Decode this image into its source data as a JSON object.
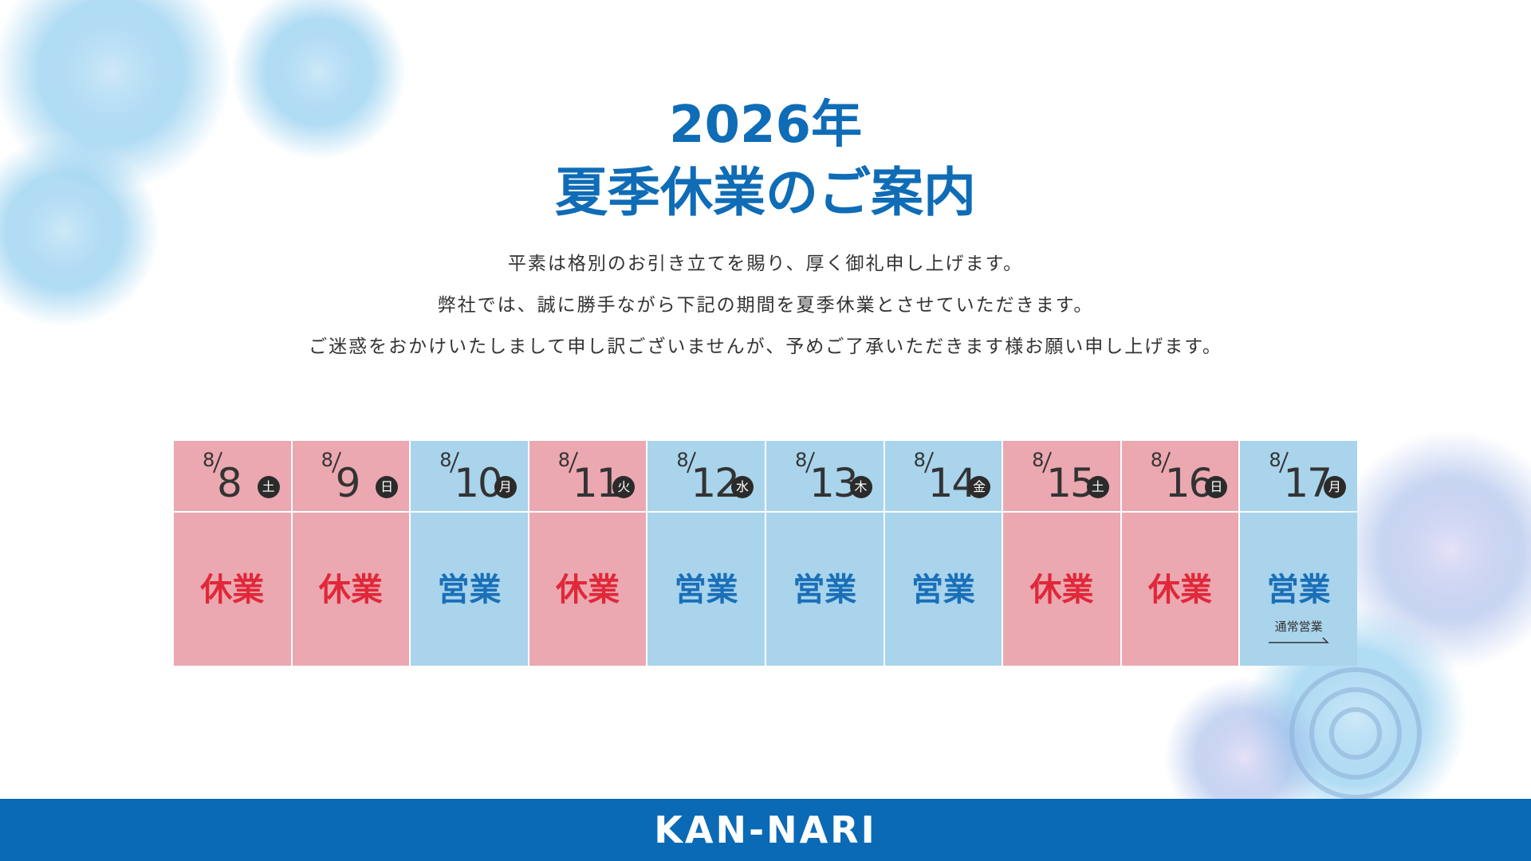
{
  "header": {
    "title_line1": "2026年",
    "title_line2": "夏季休業のご案内",
    "color": "#0f6cb6"
  },
  "message": {
    "lines": [
      "平素は格別のお引き立てを賜り、厚く御礼申し上げます。",
      "弊社では、誠に勝手ながら下記の期間を夏季休業とさせていただきます。",
      "ご迷惑をおかけいたしまして申し訳ございませんが、予めご了承いただきます様お願い申し上げます。"
    ]
  },
  "calendar": {
    "days": [
      {
        "month": "8",
        "day": "8",
        "weekday": "土",
        "status": "休業",
        "color": "#eba8b0",
        "text_color": "#e0283a"
      },
      {
        "month": "8",
        "day": "9",
        "weekday": "日",
        "status": "休業",
        "color": "#eba8b0",
        "text_color": "#e0283a"
      },
      {
        "month": "8",
        "day": "10",
        "weekday": "月",
        "status": "営業",
        "color": "#a9d4ec",
        "text_color": "#1a6fb8"
      },
      {
        "month": "8",
        "day": "11",
        "weekday": "火",
        "status": "休業",
        "color": "#eba8b0",
        "text_color": "#e0283a"
      },
      {
        "month": "8",
        "day": "12",
        "weekday": "水",
        "status": "営業",
        "color": "#a9d4ec",
        "text_color": "#1a6fb8"
      },
      {
        "month": "8",
        "day": "13",
        "weekday": "木",
        "status": "営業",
        "color": "#a9d4ec",
        "text_color": "#1a6fb8"
      },
      {
        "month": "8",
        "day": "14",
        "weekday": "金",
        "status": "営業",
        "color": "#a9d4ec",
        "text_color": "#1a6fb8"
      },
      {
        "month": "8",
        "day": "15",
        "weekday": "土",
        "status": "休業",
        "color": "#eba8b0",
        "text_color": "#e0283a"
      },
      {
        "month": "8",
        "day": "16",
        "weekday": "日",
        "status": "休業",
        "color": "#eba8b0",
        "text_color": "#e0283a"
      },
      {
        "month": "8",
        "day": "17",
        "weekday": "月",
        "status": "営業",
        "color": "#a9d4ec",
        "text_color": "#1a6fb8",
        "note": "通常営業"
      }
    ]
  },
  "footer": {
    "brand": "KAN-NARI",
    "color": "#0a6ab6"
  }
}
